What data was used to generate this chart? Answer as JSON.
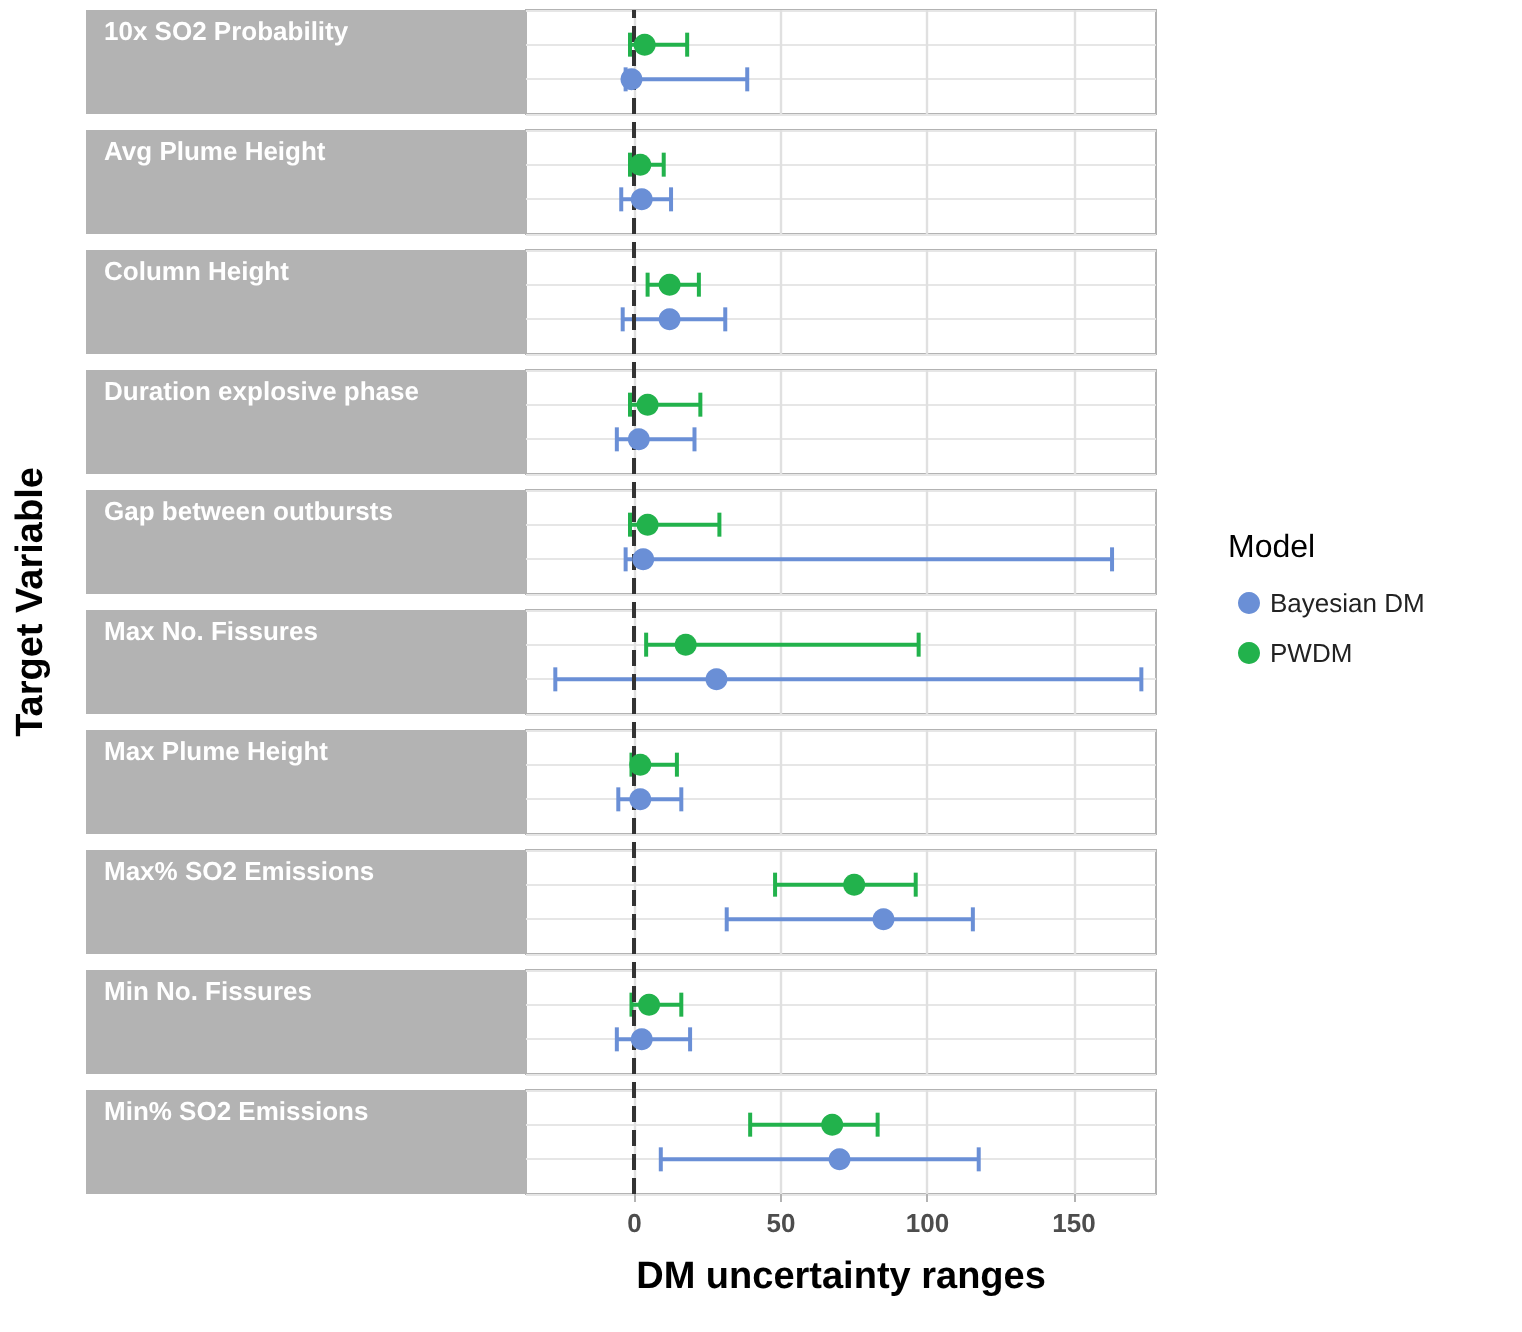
{
  "chart_data": {
    "type": "scatter",
    "orientation": "horizontal",
    "xlabel": "DM uncertainty ranges",
    "ylabel": "Target Variable",
    "legend_title": "Model",
    "legend": "right",
    "categories": [
      "10x SO2 Probability",
      "Avg Plume Height",
      "Column Height",
      "Duration explosive phase",
      "Gap between outbursts",
      "Max No. Fissures",
      "Max Plume Height",
      "Max% SO2 Emissions",
      "Min No. Fissures",
      "Min% SO2 Emissions"
    ],
    "series": [
      {
        "name": "Bayesian DM",
        "color": "#6a8fd6",
        "values": [
          -1,
          2.5,
          12,
          1.5,
          3,
          28,
          2,
          85,
          2.5,
          70
        ],
        "errors": [
          [
            -3,
            38.5
          ],
          [
            -4.5,
            12.5
          ],
          [
            -4,
            31
          ],
          [
            -6,
            20.5
          ],
          [
            -3,
            163
          ],
          [
            -27,
            173
          ],
          [
            -5.5,
            16
          ],
          [
            31.5,
            115.5
          ],
          [
            -6,
            19
          ],
          [
            9,
            117.5
          ]
        ]
      },
      {
        "name": "PWDM",
        "color": "#22b24c",
        "values": [
          3.5,
          2,
          12,
          4.5,
          4.5,
          17.5,
          2,
          75,
          5,
          67.5
        ],
        "errors": [
          [
            -1.5,
            18
          ],
          [
            -1.5,
            10
          ],
          [
            4.5,
            22
          ],
          [
            -1.5,
            22.5
          ],
          [
            -1.5,
            29
          ],
          [
            4,
            97
          ],
          [
            -1,
            14.5
          ],
          [
            48,
            96
          ],
          [
            -1,
            16
          ],
          [
            39.5,
            83
          ]
        ]
      }
    ],
    "xlim": [
      -37,
      178
    ],
    "xticks": [
      0,
      50,
      100,
      150
    ],
    "grid": true,
    "marker": "circle",
    "ref_lines": [
      {
        "axis": "x",
        "value": 0,
        "color": "#333333",
        "line_style": "dashed"
      }
    ]
  }
}
